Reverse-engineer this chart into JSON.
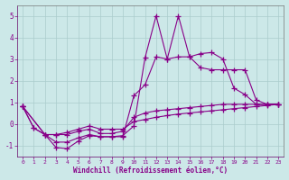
{
  "xlabel": "Windchill (Refroidissement éolien,°C)",
  "bg_color": "#cce8e8",
  "grid_color": "#aacccc",
  "line_color": "#880088",
  "xlim": [
    -0.5,
    23.5
  ],
  "ylim": [
    -1.5,
    5.5
  ],
  "xticks": [
    0,
    1,
    2,
    3,
    4,
    5,
    6,
    7,
    8,
    9,
    10,
    11,
    12,
    13,
    14,
    15,
    16,
    17,
    18,
    19,
    20,
    21,
    22,
    23
  ],
  "yticks": [
    -1,
    0,
    1,
    2,
    3,
    4,
    5
  ],
  "series": {
    "line1": {
      "x": [
        0,
        1,
        2,
        3,
        4,
        5,
        6,
        7,
        8,
        9,
        10,
        11,
        12,
        13,
        14,
        15,
        16,
        17,
        18,
        19,
        20,
        21,
        22,
        23
      ],
      "y": [
        0.8,
        -0.2,
        -0.5,
        -1.1,
        -1.15,
        -0.8,
        -0.55,
        -0.6,
        -0.6,
        -0.55,
        -0.1,
        3.05,
        5.0,
        3.0,
        5.0,
        3.1,
        3.25,
        3.3,
        3.0,
        1.65,
        1.35,
        0.9,
        0.9,
        0.9
      ]
    },
    "line2": {
      "x": [
        0,
        1,
        2,
        3,
        4,
        5,
        6,
        7,
        8,
        9,
        10,
        11,
        12,
        13,
        14,
        15,
        16,
        17,
        18,
        19,
        20,
        21,
        22,
        23
      ],
      "y": [
        0.8,
        -0.2,
        -0.5,
        -0.85,
        -0.85,
        -0.65,
        -0.5,
        -0.6,
        -0.6,
        -0.6,
        1.3,
        1.8,
        3.1,
        3.0,
        3.1,
        3.1,
        2.6,
        2.5,
        2.5,
        2.5,
        2.5,
        1.1,
        0.9,
        0.9
      ]
    },
    "line3": {
      "x": [
        0,
        2,
        3,
        4,
        5,
        6,
        7,
        8,
        9,
        10,
        11,
        12,
        13,
        14,
        15,
        16,
        17,
        18,
        19,
        20,
        21,
        22,
        23
      ],
      "y": [
        0.8,
        -0.5,
        -0.5,
        -0.5,
        -0.35,
        -0.25,
        -0.45,
        -0.45,
        -0.35,
        0.3,
        0.5,
        0.6,
        0.65,
        0.7,
        0.75,
        0.8,
        0.85,
        0.9,
        0.9,
        0.9,
        0.9,
        0.9,
        0.9
      ]
    },
    "line4": {
      "x": [
        0,
        2,
        3,
        4,
        5,
        6,
        7,
        8,
        9,
        10,
        11,
        12,
        13,
        14,
        15,
        16,
        17,
        18,
        19,
        20,
        21,
        22,
        23
      ],
      "y": [
        0.8,
        -0.5,
        -0.5,
        -0.4,
        -0.25,
        -0.1,
        -0.25,
        -0.25,
        -0.25,
        0.1,
        0.2,
        0.3,
        0.38,
        0.45,
        0.5,
        0.55,
        0.6,
        0.65,
        0.7,
        0.75,
        0.8,
        0.85,
        0.9
      ]
    }
  }
}
